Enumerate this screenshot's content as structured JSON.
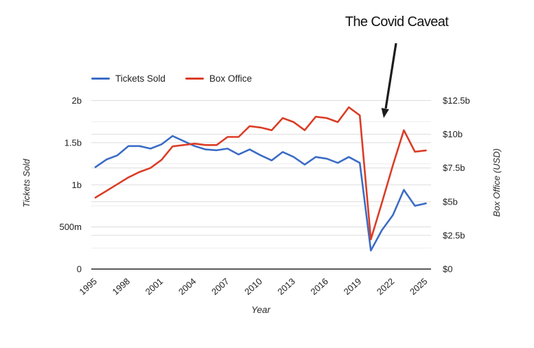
{
  "title": "The Covid Caveat",
  "legend": [
    {
      "label": "Tickets Sold",
      "color": "#3b6cc5"
    },
    {
      "label": "Box Office",
      "color": "#db3c26"
    }
  ],
  "colors": {
    "blue": "#3b6cc5",
    "red": "#db3c26",
    "grid_major": "#dcdcdc",
    "grid_minor": "#ededed",
    "axis_line": "#222222",
    "text": "#212121",
    "annotation_arrow": "#1c1c1c"
  },
  "chart_data": {
    "type": "line",
    "x": [
      1995,
      1996,
      1997,
      1998,
      1999,
      2000,
      2001,
      2002,
      2003,
      2004,
      2005,
      2006,
      2007,
      2008,
      2009,
      2010,
      2011,
      2012,
      2013,
      2014,
      2015,
      2016,
      2017,
      2018,
      2019,
      2020,
      2021,
      2022,
      2023,
      2024,
      2025
    ],
    "series": [
      {
        "name": "Tickets Sold",
        "axis": "left",
        "color": "#3b6cc5",
        "unit": "tickets (billions)",
        "values": [
          1.21,
          1.3,
          1.35,
          1.46,
          1.46,
          1.43,
          1.48,
          1.58,
          1.52,
          1.46,
          1.42,
          1.41,
          1.43,
          1.36,
          1.42,
          1.35,
          1.29,
          1.39,
          1.33,
          1.24,
          1.33,
          1.31,
          1.26,
          1.33,
          1.26,
          0.22,
          0.46,
          0.64,
          0.94,
          0.75,
          0.78
        ]
      },
      {
        "name": "Box Office",
        "axis": "right",
        "color": "#db3c26",
        "unit": "USD (billions)",
        "values": [
          5.3,
          5.8,
          6.3,
          6.8,
          7.2,
          7.5,
          8.1,
          9.1,
          9.2,
          9.3,
          9.2,
          9.2,
          9.8,
          9.8,
          10.6,
          10.5,
          10.3,
          11.2,
          10.9,
          10.3,
          11.3,
          11.2,
          10.9,
          12.0,
          11.4,
          2.2,
          4.9,
          7.7,
          10.3,
          8.7,
          8.8
        ]
      }
    ],
    "x_axis": {
      "label": "Year",
      "ticks": [
        1995,
        1998,
        2001,
        2004,
        2007,
        2010,
        2013,
        2016,
        2019,
        2022,
        2025
      ],
      "tick_rotation_deg": -42
    },
    "y_left": {
      "label": "Tickets Sold",
      "range": [
        0,
        2
      ],
      "tick_values": [
        0,
        0.5,
        1,
        1.5,
        2
      ],
      "ticks": [
        "0",
        "500m",
        "1b",
        "1.5b",
        "2b"
      ],
      "minor_tick_values": [
        0.25,
        0.75,
        1.25,
        1.75
      ]
    },
    "y_right": {
      "label": "Box Office (USD)",
      "range": [
        0,
        12.5
      ],
      "tick_values": [
        0,
        2.5,
        5,
        7.5,
        10,
        12.5
      ],
      "ticks": [
        "$0",
        "$2.5b",
        "$5b",
        "$7.5b",
        "$10b",
        "$12.5b"
      ]
    },
    "annotation": {
      "text": "The Covid Caveat",
      "points_at_year": 2020,
      "arrow_from": [
        577,
        63
      ],
      "arrow_to": [
        559,
        172
      ]
    },
    "grid": true,
    "legend_position": "top-left"
  }
}
